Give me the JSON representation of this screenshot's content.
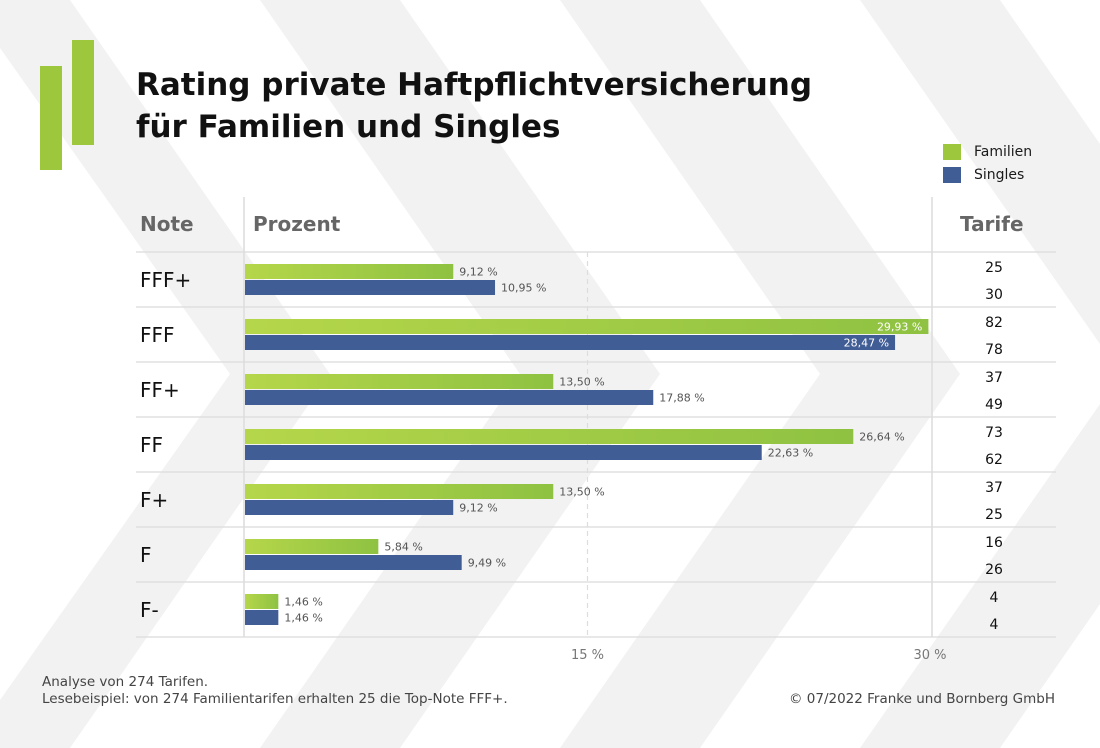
{
  "title": {
    "line1": "Rating private Haftpflichtversicherung",
    "line2": "für Familien und Singles"
  },
  "legend": [
    {
      "label": "Familien",
      "color": "#9dc83e"
    },
    {
      "label": "Singles",
      "color": "#405d96"
    }
  ],
  "columns": {
    "note": "Note",
    "percent": "Prozent",
    "tariffs": "Tarife"
  },
  "chart_data": {
    "type": "bar",
    "orientation": "horizontal",
    "categories": [
      "FFF+",
      "FFF",
      "FF+",
      "FF",
      "F+",
      "F",
      "F-"
    ],
    "series": [
      {
        "name": "Familien",
        "color": "#9dc83e",
        "values": [
          9.12,
          29.93,
          13.5,
          26.64,
          13.5,
          5.84,
          1.46
        ],
        "value_labels": [
          "9,12 %",
          "29,93 %",
          "13,50 %",
          "26,64 %",
          "13,50 %",
          "5,84 %",
          "1,46 %"
        ],
        "tariffs": [
          25,
          82,
          37,
          73,
          37,
          16,
          4
        ]
      },
      {
        "name": "Singles",
        "color": "#405d96",
        "values": [
          10.95,
          28.47,
          17.88,
          22.63,
          9.12,
          9.49,
          1.46
        ],
        "value_labels": [
          "10,95 %",
          "28,47 %",
          "17,88 %",
          "22,63 %",
          "9,12 %",
          "9,49 %",
          "1,46 %"
        ],
        "tariffs": [
          30,
          78,
          49,
          62,
          25,
          26,
          4
        ]
      }
    ],
    "xlim": [
      0,
      30
    ],
    "x_ticks": [
      15,
      30
    ],
    "x_tick_labels": [
      "15 %",
      "30 %"
    ],
    "grid": true
  },
  "footer": {
    "line1": "Analyse von 274 Tarifen.",
    "line2": "Lesebeispiel: von 274 Familientarifen erhalten 25 die Top-Note FFF+.",
    "copyright": "© 07/2022 Franke und Bornberg GmbH"
  }
}
